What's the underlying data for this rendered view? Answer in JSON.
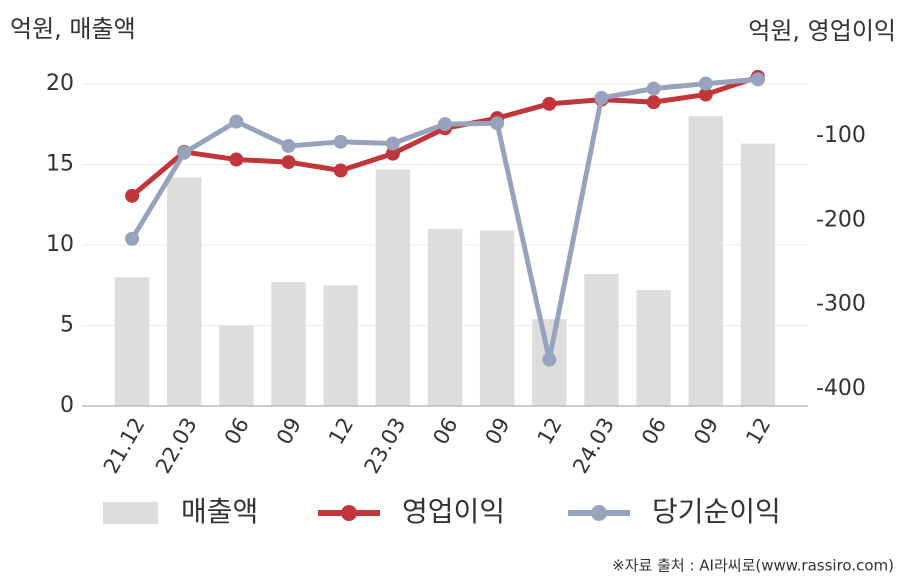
{
  "chart_data": {
    "type": "combo",
    "left_axis_label": "억원, 매출액",
    "right_axis_label": "억원, 영업이익",
    "source": "※자료 출처 : AI라씨로(www.rassiro.com)",
    "categories": [
      "21.12",
      "22.03",
      "06",
      "09",
      "12",
      "23.03",
      "06",
      "09",
      "12",
      "24.03",
      "06",
      "09",
      "12"
    ],
    "series": [
      {
        "name": "매출액",
        "type": "bar",
        "color": "#dddddd",
        "values": [
          8.0,
          14.2,
          5.0,
          7.7,
          7.5,
          14.7,
          11.0,
          10.9,
          5.4,
          8.2,
          7.2,
          18.0,
          16.3
        ]
      },
      {
        "name": "영업이익",
        "type": "line",
        "axis": "y2",
        "color": "#c0363a",
        "values": [
          -171,
          -119,
          -128,
          -131,
          -141,
          -121,
          -91,
          -79,
          -62,
          -57,
          -60,
          -51,
          -30
        ]
      },
      {
        "name": "당기순이익",
        "type": "line",
        "axis": "y2",
        "color": "#97a3bc",
        "values": [
          -222,
          -120,
          -83,
          -112,
          -107,
          -109,
          -86,
          -85,
          -365,
          -55,
          -44,
          -38,
          -33
        ]
      }
    ],
    "ylim": [
      0,
      20
    ],
    "yticks": [
      0,
      5,
      10,
      15,
      20
    ],
    "y2lim": [
      -420,
      -38.5
    ],
    "y2ticks": [
      -100,
      -200,
      -300,
      -400
    ],
    "grid": true
  }
}
